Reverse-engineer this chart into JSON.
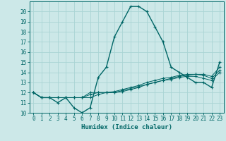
{
  "title": "",
  "xlabel": "Humidex (Indice chaleur)",
  "ylabel": "",
  "bg_color": "#cce8e8",
  "grid_color": "#b0d8d8",
  "line_color": "#006666",
  "xlim": [
    -0.5,
    23.5
  ],
  "ylim": [
    10,
    21
  ],
  "xticks": [
    0,
    1,
    2,
    3,
    4,
    5,
    6,
    7,
    8,
    9,
    10,
    11,
    12,
    13,
    14,
    15,
    16,
    17,
    18,
    19,
    20,
    21,
    22,
    23
  ],
  "yticks": [
    10,
    11,
    12,
    13,
    14,
    15,
    16,
    17,
    18,
    19,
    20
  ],
  "main_x": [
    0,
    1,
    2,
    3,
    4,
    5,
    6,
    7,
    8,
    9,
    10,
    11,
    12,
    13,
    14,
    15,
    16,
    17,
    18,
    19,
    20,
    21,
    22,
    23
  ],
  "main_y": [
    12,
    11.5,
    11.5,
    11.0,
    11.5,
    10.5,
    10.0,
    10.5,
    13.5,
    14.5,
    17.5,
    19.0,
    20.5,
    20.5,
    20.0,
    18.5,
    17.0,
    14.5,
    14.0,
    13.5,
    13.0,
    13.0,
    12.5,
    15.0
  ],
  "line2_x": [
    0,
    1,
    2,
    3,
    4,
    5,
    6,
    7,
    8,
    9,
    10,
    11,
    12,
    13,
    14,
    15,
    16,
    17,
    18,
    19,
    20,
    21,
    22,
    23
  ],
  "line2_y": [
    12,
    11.5,
    11.5,
    11.5,
    11.5,
    11.5,
    11.5,
    12.0,
    12.0,
    12.0,
    12.0,
    12.2,
    12.4,
    12.6,
    12.8,
    13.0,
    13.2,
    13.4,
    13.6,
    13.7,
    13.8,
    13.8,
    13.6,
    14.5
  ],
  "line3_x": [
    0,
    1,
    2,
    3,
    4,
    5,
    6,
    7,
    8,
    9,
    10,
    11,
    12,
    13,
    14,
    15,
    16,
    17,
    18,
    19,
    20,
    21,
    22,
    23
  ],
  "line3_y": [
    12,
    11.5,
    11.5,
    11.5,
    11.5,
    11.5,
    11.5,
    11.8,
    12.0,
    12.0,
    12.1,
    12.3,
    12.5,
    12.7,
    13.0,
    13.2,
    13.4,
    13.5,
    13.7,
    13.8,
    13.8,
    13.7,
    13.4,
    14.2
  ],
  "line4_x": [
    0,
    1,
    2,
    3,
    4,
    5,
    6,
    7,
    8,
    9,
    10,
    11,
    12,
    13,
    14,
    15,
    16,
    17,
    18,
    19,
    20,
    21,
    22,
    23
  ],
  "line4_y": [
    12,
    11.5,
    11.5,
    11.5,
    11.5,
    11.5,
    11.5,
    11.5,
    11.8,
    12.0,
    12.0,
    12.1,
    12.3,
    12.5,
    12.8,
    13.0,
    13.2,
    13.3,
    13.5,
    13.6,
    13.6,
    13.4,
    13.2,
    14.0
  ]
}
